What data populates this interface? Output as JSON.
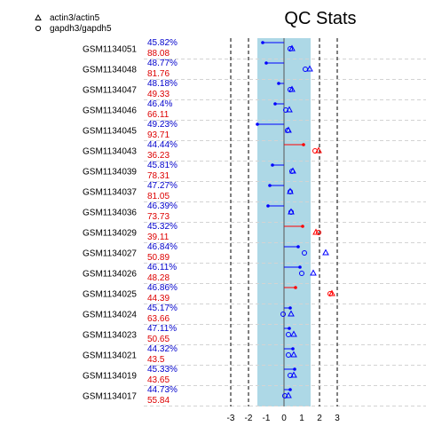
{
  "title": "QC Stats",
  "colors": {
    "band": "#add8e6",
    "point_blue": "#0000ff",
    "point_red": "#ff0000",
    "pct_top": "#0000cc",
    "pct_bottom": "#dd0000",
    "grid": "#d3d3d3",
    "dashed": "#000000"
  },
  "legend": [
    {
      "symbol": "triangle",
      "label": "actin3/actin5"
    },
    {
      "symbol": "circle",
      "label": "gapdh3/gapdh5"
    }
  ],
  "chart_data": {
    "type": "scatter",
    "title": "QC Stats",
    "xlim": [
      -3.5,
      4.0
    ],
    "xticks": [
      -3,
      -2,
      -1,
      0,
      1,
      2,
      3
    ],
    "dashed_lines": [
      -3,
      -2,
      2,
      3
    ],
    "band": [
      -1.5,
      1.5
    ],
    "zero_line": 0,
    "series": [
      {
        "name": "actin3/actin5",
        "marker": "triangle"
      },
      {
        "name": "gapdh3/gapdh5",
        "marker": "circle"
      }
    ],
    "samples": [
      {
        "id": "GSM1134051",
        "pct_top": "45.82%",
        "pct_bottom": "88.08",
        "scale_factor": -1.2,
        "actin": 0.45,
        "gapdh": 0.35,
        "color": "blue"
      },
      {
        "id": "GSM1134048",
        "pct_top": "48.77%",
        "pct_bottom": "81.76",
        "scale_factor": -1.0,
        "actin": 1.45,
        "gapdh": 1.2,
        "color": "blue"
      },
      {
        "id": "GSM1134047",
        "pct_top": "48.18%",
        "pct_bottom": "49.33",
        "scale_factor": -0.3,
        "actin": 0.45,
        "gapdh": 0.35,
        "color": "blue"
      },
      {
        "id": "GSM1134046",
        "pct_top": "46.4%",
        "pct_bottom": "66.11",
        "scale_factor": -0.5,
        "actin": 0.3,
        "gapdh": 0.1,
        "color": "blue"
      },
      {
        "id": "GSM1134045",
        "pct_top": "49.23%",
        "pct_bottom": "93.71",
        "scale_factor": -1.5,
        "actin": 0.25,
        "gapdh": 0.2,
        "color": "blue"
      },
      {
        "id": "GSM1134043",
        "pct_top": "44.44%",
        "pct_bottom": "36.23",
        "scale_factor": 1.1,
        "actin": 1.95,
        "gapdh": 1.75,
        "color": "red"
      },
      {
        "id": "GSM1134039",
        "pct_top": "45.81%",
        "pct_bottom": "78.31",
        "scale_factor": -0.65,
        "actin": 0.5,
        "gapdh": 0.45,
        "color": "blue"
      },
      {
        "id": "GSM1134037",
        "pct_top": "47.27%",
        "pct_bottom": "81.05",
        "scale_factor": -0.8,
        "actin": 0.35,
        "gapdh": 0.35,
        "color": "blue"
      },
      {
        "id": "GSM1134036",
        "pct_top": "46.39%",
        "pct_bottom": "73.73",
        "scale_factor": -0.9,
        "actin": 0.4,
        "gapdh": 0.4,
        "color": "blue"
      },
      {
        "id": "GSM1134029",
        "pct_top": "45.32%",
        "pct_bottom": "39.11",
        "scale_factor": 1.05,
        "actin": 1.8,
        "gapdh": 1.95,
        "color": "red"
      },
      {
        "id": "GSM1134027",
        "pct_top": "46.84%",
        "pct_bottom": "50.89",
        "scale_factor": 0.8,
        "actin": 2.35,
        "gapdh": 1.15,
        "color": "blue"
      },
      {
        "id": "GSM1134026",
        "pct_top": "46.11%",
        "pct_bottom": "48.28",
        "scale_factor": 0.9,
        "actin": 1.65,
        "gapdh": 1.0,
        "color": "blue"
      },
      {
        "id": "GSM1134025",
        "pct_top": "46.86%",
        "pct_bottom": "44.39",
        "scale_factor": 0.65,
        "actin": 2.7,
        "gapdh": 2.6,
        "color": "red"
      },
      {
        "id": "GSM1134024",
        "pct_top": "45.17%",
        "pct_bottom": "63.66",
        "scale_factor": 0.35,
        "actin": 0.4,
        "gapdh": -0.05,
        "color": "blue"
      },
      {
        "id": "GSM1134023",
        "pct_top": "47.11%",
        "pct_bottom": "50.65",
        "scale_factor": 0.3,
        "actin": 0.55,
        "gapdh": 0.25,
        "color": "blue"
      },
      {
        "id": "GSM1134021",
        "pct_top": "44.32%",
        "pct_bottom": "43.5",
        "scale_factor": 0.5,
        "actin": 0.55,
        "gapdh": 0.25,
        "color": "blue"
      },
      {
        "id": "GSM1134019",
        "pct_top": "45.33%",
        "pct_bottom": "43.65",
        "scale_factor": 0.6,
        "actin": 0.55,
        "gapdh": 0.35,
        "color": "blue"
      },
      {
        "id": "GSM1134017",
        "pct_top": "44.73%",
        "pct_bottom": "55.84",
        "scale_factor": 0.35,
        "actin": 0.25,
        "gapdh": 0.05,
        "color": "blue"
      }
    ]
  }
}
